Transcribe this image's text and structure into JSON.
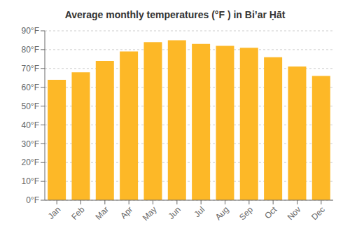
{
  "chart_data": {
    "type": "bar",
    "title": "Average monthly temperatures (°F ) in Biʼar Ḥāt",
    "categories": [
      "Jan",
      "Feb",
      "Mar",
      "Apr",
      "May",
      "Jun",
      "Jul",
      "Aug",
      "Sep",
      "Oct",
      "Nov",
      "Dec"
    ],
    "values": [
      64,
      68,
      74,
      79,
      84,
      85,
      83,
      82,
      81,
      76,
      71,
      66
    ],
    "color": "#FDB827",
    "ylim": [
      0,
      90
    ],
    "yticks": [
      {
        "value": 0,
        "label": "0°F"
      },
      {
        "value": 10,
        "label": "10°F"
      },
      {
        "value": 20,
        "label": "20°F"
      },
      {
        "value": 30,
        "label": "30°F"
      },
      {
        "value": 40,
        "label": "40°F"
      },
      {
        "value": 50,
        "label": "50°F"
      },
      {
        "value": 60,
        "label": "60°F"
      },
      {
        "value": 70,
        "label": "70°F"
      },
      {
        "value": 80,
        "label": "80°F"
      },
      {
        "value": 90,
        "label": "90°F"
      }
    ],
    "grid": true
  }
}
